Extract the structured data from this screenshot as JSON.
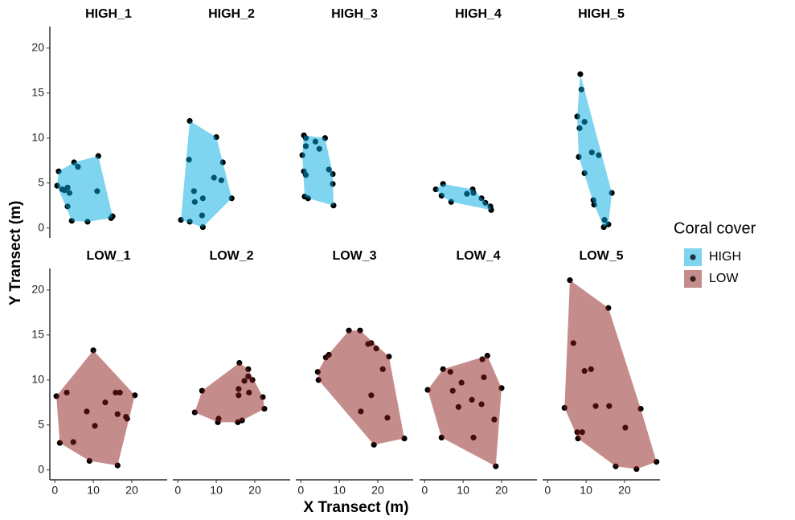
{
  "chart_data": {
    "type": "scatter",
    "xlabel": "X Transect (m)",
    "ylabel": "Y Transect (m)",
    "legend_title": "Coral cover",
    "xlim": [
      -1.3,
      29.2
    ],
    "ylim": [
      -1.1,
      22.4
    ],
    "xticks": [
      0,
      10,
      20
    ],
    "yticks": [
      0,
      5,
      10,
      15,
      20
    ],
    "series": [
      {
        "name": "HIGH",
        "color": "#00a9e0",
        "panels": [
          {
            "title": "HIGH_1",
            "x": [
              1.0,
              0.6,
              1.9,
              2.5,
              3.3,
              3.8,
              3.3,
              4.4,
              5.0,
              6.0,
              8.5,
              11.3,
              11.0,
              14.6,
              15.0
            ],
            "y": [
              6.3,
              4.7,
              4.3,
              4.2,
              4.5,
              3.9,
              2.4,
              0.8,
              7.3,
              6.8,
              0.7,
              8.0,
              4.1,
              1.1,
              1.3
            ]
          },
          {
            "title": "HIGH_2",
            "x": [
              0.8,
              3.1,
              2.9,
              3.1,
              4.2,
              4.4,
              6.5,
              6.3,
              6.5,
              10.0,
              9.4,
              11.7,
              11.3,
              14.0
            ],
            "y": [
              0.9,
              11.9,
              7.6,
              0.7,
              4.1,
              2.9,
              3.3,
              1.4,
              0.1,
              10.1,
              5.6,
              7.3,
              5.3,
              3.3
            ]
          },
          {
            "title": "HIGH_3",
            "x": [
              0.8,
              1.3,
              0.4,
              1.3,
              0.8,
              1.3,
              1.0,
              1.9,
              3.8,
              4.8,
              6.3,
              7.3,
              8.3,
              8.3,
              8.5
            ],
            "y": [
              10.3,
              10.0,
              8.1,
              9.1,
              6.3,
              5.9,
              3.5,
              3.3,
              9.6,
              8.8,
              10.0,
              6.5,
              6.0,
              4.9,
              2.5
            ]
          },
          {
            "title": "HIGH_4",
            "x": [
              2.9,
              4.8,
              4.4,
              6.9,
              11.0,
              12.5,
              12.7,
              14.8,
              15.8,
              17.3,
              17.1
            ],
            "y": [
              4.3,
              4.9,
              3.6,
              2.9,
              3.8,
              4.3,
              3.9,
              3.3,
              2.8,
              2.0,
              2.4
            ]
          },
          {
            "title": "HIGH_5",
            "x": [
              8.5,
              8.8,
              7.7,
              8.3,
              9.6,
              8.1,
              9.6,
              11.5,
              13.3,
              11.9,
              12.1,
              14.8,
              14.6,
              15.8,
              16.7
            ],
            "y": [
              17.1,
              15.4,
              12.4,
              11.1,
              11.8,
              7.9,
              6.1,
              8.4,
              8.1,
              3.1,
              2.6,
              0.9,
              0.1,
              0.4,
              3.9
            ]
          }
        ]
      },
      {
        "name": "LOW",
        "color": "#8b1a1a",
        "panels": [
          {
            "title": "LOW_1",
            "x": [
              0.4,
              1.3,
              3.1,
              4.8,
              8.3,
              9.0,
              10.0,
              10.4,
              13.1,
              15.8,
              16.9,
              16.3,
              18.5,
              18.8,
              16.3,
              20.8
            ],
            "y": [
              8.2,
              3.0,
              8.6,
              3.1,
              6.5,
              1.0,
              13.3,
              4.9,
              7.5,
              8.6,
              8.6,
              6.2,
              5.9,
              5.7,
              0.5,
              8.3
            ]
          },
          {
            "title": "LOW_2",
            "x": [
              4.4,
              6.3,
              10.6,
              10.4,
              15.6,
              16.7,
              16.0,
              15.8,
              15.8,
              17.3,
              18.3,
              18.3,
              18.5,
              19.4,
              22.1,
              22.5
            ],
            "y": [
              6.4,
              8.8,
              5.7,
              5.3,
              5.3,
              5.5,
              11.9,
              9.0,
              8.3,
              9.9,
              11.2,
              10.4,
              8.6,
              10.0,
              8.1,
              6.8
            ]
          },
          {
            "title": "LOW_3",
            "x": [
              4.4,
              4.6,
              6.5,
              7.3,
              12.5,
              15.4,
              17.5,
              18.3,
              19.6,
              15.6,
              18.3,
              21.3,
              22.9,
              22.5,
              19.0,
              26.9
            ],
            "y": [
              10.9,
              10.0,
              12.5,
              12.8,
              15.5,
              15.5,
              14.0,
              14.1,
              13.5,
              6.5,
              8.3,
              11.2,
              12.6,
              5.8,
              2.8,
              3.5
            ]
          },
          {
            "title": "LOW_4",
            "x": [
              0.8,
              4.4,
              4.8,
              6.7,
              7.3,
              8.8,
              9.6,
              12.3,
              12.7,
              14.8,
              15.4,
              15.0,
              16.3,
              18.1,
              20.0,
              18.5
            ],
            "y": [
              8.9,
              3.6,
              11.2,
              10.9,
              8.8,
              7.0,
              9.7,
              7.8,
              3.6,
              7.3,
              10.3,
              12.3,
              12.7,
              5.6,
              9.1,
              0.4
            ]
          },
          {
            "title": "LOW_5",
            "x": [
              5.8,
              6.7,
              9.6,
              11.3,
              4.4,
              7.7,
              9.0,
              7.9,
              12.5,
              15.8,
              16.0,
              20.2,
              24.2,
              17.7,
              23.1,
              28.3
            ],
            "y": [
              21.1,
              14.1,
              11.0,
              11.2,
              6.9,
              4.2,
              4.2,
              3.5,
              7.1,
              18.0,
              7.1,
              4.7,
              6.8,
              0.4,
              0.1,
              0.9
            ]
          }
        ]
      }
    ]
  }
}
